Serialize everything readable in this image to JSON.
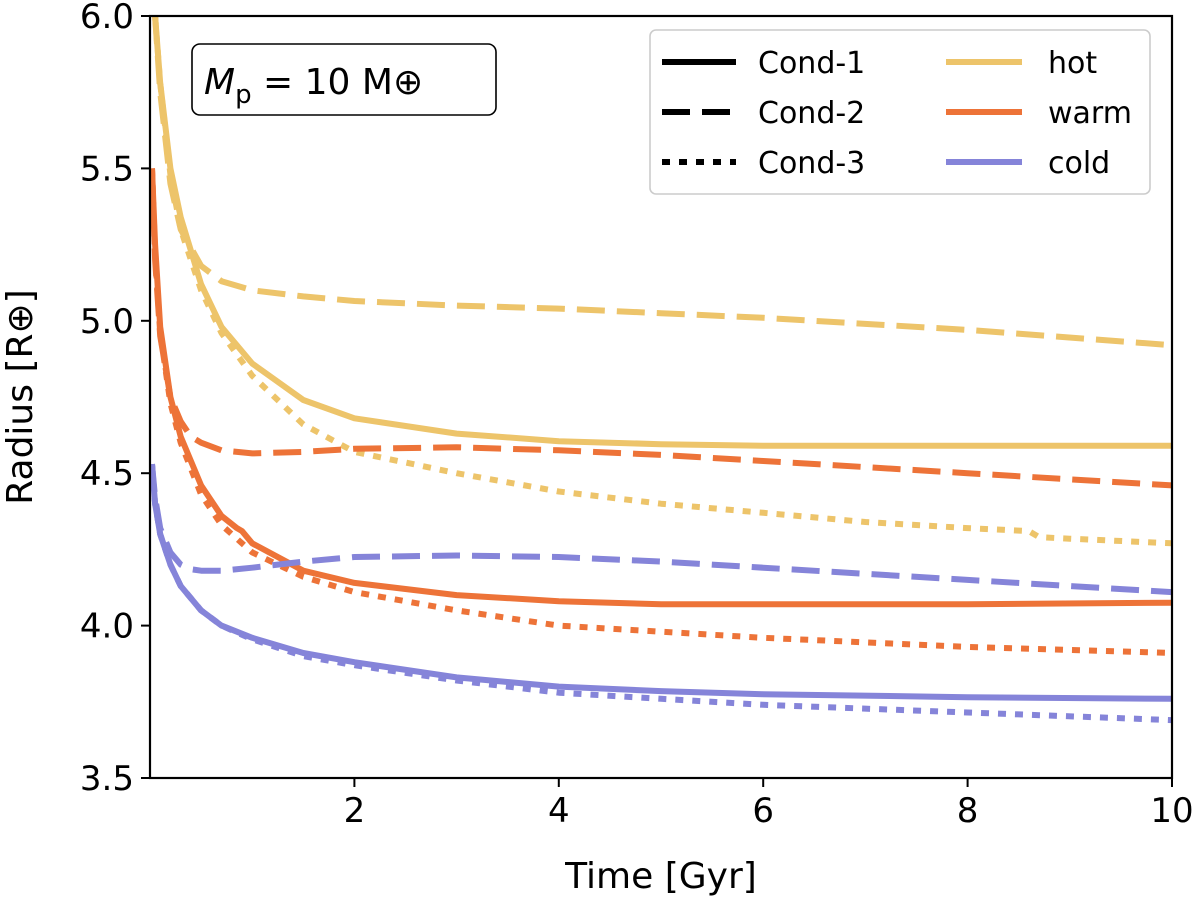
{
  "chart_data": {
    "type": "line",
    "title": "",
    "xlabel": "Time [Gyr]",
    "ylabel": "Radius [R⊕]",
    "xlim": [
      0,
      10
    ],
    "ylim": [
      3.5,
      6.0
    ],
    "xticks": [
      2,
      4,
      6,
      8,
      10
    ],
    "yticks": [
      3.5,
      4.0,
      4.5,
      5.0,
      5.5,
      6.0
    ],
    "annotation": {
      "symbol": "M",
      "subscript": "p",
      "rest": " = 10 M⊕"
    },
    "legend": {
      "position": "top-right",
      "styles": [
        {
          "label": "Cond-1",
          "dash": "solid"
        },
        {
          "label": "Cond-2",
          "dash": "dashed"
        },
        {
          "label": "Cond-3",
          "dash": "dotted"
        }
      ],
      "colors": [
        {
          "label": "hot",
          "color": "#EDC46A"
        },
        {
          "label": "warm",
          "color": "#ED7338"
        },
        {
          "label": "cold",
          "color": "#8584D9"
        }
      ]
    },
    "series": [
      {
        "name": "hot Cond-1",
        "color": "#EDC46A",
        "dash": "solid",
        "x": [
          0.05,
          0.1,
          0.2,
          0.3,
          0.5,
          0.7,
          1.0,
          1.5,
          2.0,
          3.0,
          4.0,
          5.0,
          6.0,
          8.0,
          10.0
        ],
        "y": [
          6.0,
          5.78,
          5.5,
          5.34,
          5.12,
          4.98,
          4.86,
          4.74,
          4.68,
          4.63,
          4.605,
          4.595,
          4.59,
          4.59,
          4.59
        ]
      },
      {
        "name": "hot Cond-2",
        "color": "#EDC46A",
        "dash": "dashed",
        "x": [
          0.05,
          0.1,
          0.2,
          0.3,
          0.5,
          0.7,
          1.0,
          1.5,
          2.0,
          3.0,
          4.0,
          5.0,
          6.0,
          8.0,
          10.0
        ],
        "y": [
          6.0,
          5.75,
          5.45,
          5.3,
          5.18,
          5.13,
          5.1,
          5.08,
          5.065,
          5.05,
          5.04,
          5.025,
          5.01,
          4.97,
          4.92
        ]
      },
      {
        "name": "hot Cond-3",
        "color": "#EDC46A",
        "dash": "dotted",
        "x": [
          0.05,
          0.1,
          0.2,
          0.3,
          0.5,
          0.7,
          1.0,
          1.5,
          2.0,
          3.0,
          4.0,
          5.0,
          6.0,
          7.0,
          8.0,
          8.6,
          8.7,
          9.0,
          10.0
        ],
        "y": [
          6.0,
          5.78,
          5.48,
          5.3,
          5.1,
          4.96,
          4.82,
          4.66,
          4.57,
          4.5,
          4.44,
          4.4,
          4.37,
          4.34,
          4.32,
          4.31,
          4.29,
          4.285,
          4.27
        ]
      },
      {
        "name": "warm Cond-1",
        "color": "#ED7338",
        "dash": "solid",
        "x": [
          0.02,
          0.05,
          0.1,
          0.2,
          0.3,
          0.5,
          0.7,
          0.85,
          0.9,
          1.0,
          1.5,
          2.0,
          3.0,
          4.0,
          5.0,
          6.0,
          8.0,
          10.0
        ],
        "y": [
          5.5,
          5.25,
          4.98,
          4.75,
          4.62,
          4.46,
          4.36,
          4.32,
          4.31,
          4.27,
          4.18,
          4.14,
          4.1,
          4.08,
          4.07,
          4.07,
          4.07,
          4.075
        ]
      },
      {
        "name": "warm Cond-2",
        "color": "#ED7338",
        "dash": "dashed",
        "x": [
          0.02,
          0.05,
          0.1,
          0.2,
          0.3,
          0.4,
          0.5,
          0.7,
          1.0,
          1.5,
          2.0,
          3.0,
          4.0,
          5.0,
          6.0,
          8.0,
          10.0
        ],
        "y": [
          5.5,
          5.2,
          4.95,
          4.75,
          4.67,
          4.62,
          4.6,
          4.575,
          4.565,
          4.57,
          4.58,
          4.585,
          4.575,
          4.56,
          4.54,
          4.5,
          4.46
        ]
      },
      {
        "name": "warm Cond-3",
        "color": "#ED7338",
        "dash": "dotted",
        "x": [
          0.02,
          0.05,
          0.1,
          0.2,
          0.3,
          0.5,
          0.7,
          1.0,
          1.5,
          2.0,
          3.0,
          4.0,
          5.0,
          6.0,
          8.0,
          10.0
        ],
        "y": [
          5.5,
          5.22,
          4.96,
          4.73,
          4.6,
          4.43,
          4.33,
          4.24,
          4.16,
          4.11,
          4.05,
          4.0,
          3.98,
          3.96,
          3.93,
          3.91
        ]
      },
      {
        "name": "cold Cond-1",
        "color": "#8584D9",
        "dash": "solid",
        "x": [
          0.02,
          0.05,
          0.1,
          0.2,
          0.3,
          0.5,
          0.7,
          1.0,
          1.5,
          2.0,
          3.0,
          4.0,
          5.0,
          6.0,
          8.0,
          10.0
        ],
        "y": [
          4.53,
          4.4,
          4.3,
          4.2,
          4.13,
          4.05,
          4.0,
          3.96,
          3.91,
          3.88,
          3.83,
          3.8,
          3.785,
          3.775,
          3.765,
          3.76
        ]
      },
      {
        "name": "cold Cond-2",
        "color": "#8584D9",
        "dash": "dashed",
        "x": [
          0.02,
          0.05,
          0.1,
          0.2,
          0.3,
          0.4,
          0.5,
          0.7,
          1.0,
          1.5,
          2.0,
          3.0,
          4.0,
          5.0,
          6.0,
          8.0,
          10.0
        ],
        "y": [
          4.53,
          4.42,
          4.32,
          4.24,
          4.2,
          4.185,
          4.18,
          4.18,
          4.19,
          4.21,
          4.225,
          4.23,
          4.225,
          4.21,
          4.19,
          4.15,
          4.11
        ]
      },
      {
        "name": "cold Cond-3",
        "color": "#8584D9",
        "dash": "dotted",
        "x": [
          0.02,
          0.05,
          0.1,
          0.2,
          0.3,
          0.5,
          0.7,
          1.0,
          1.5,
          2.0,
          3.0,
          4.0,
          5.0,
          6.0,
          8.0,
          10.0
        ],
        "y": [
          4.53,
          4.4,
          4.3,
          4.2,
          4.13,
          4.05,
          4.0,
          3.955,
          3.9,
          3.87,
          3.82,
          3.78,
          3.76,
          3.74,
          3.715,
          3.69
        ]
      }
    ]
  }
}
